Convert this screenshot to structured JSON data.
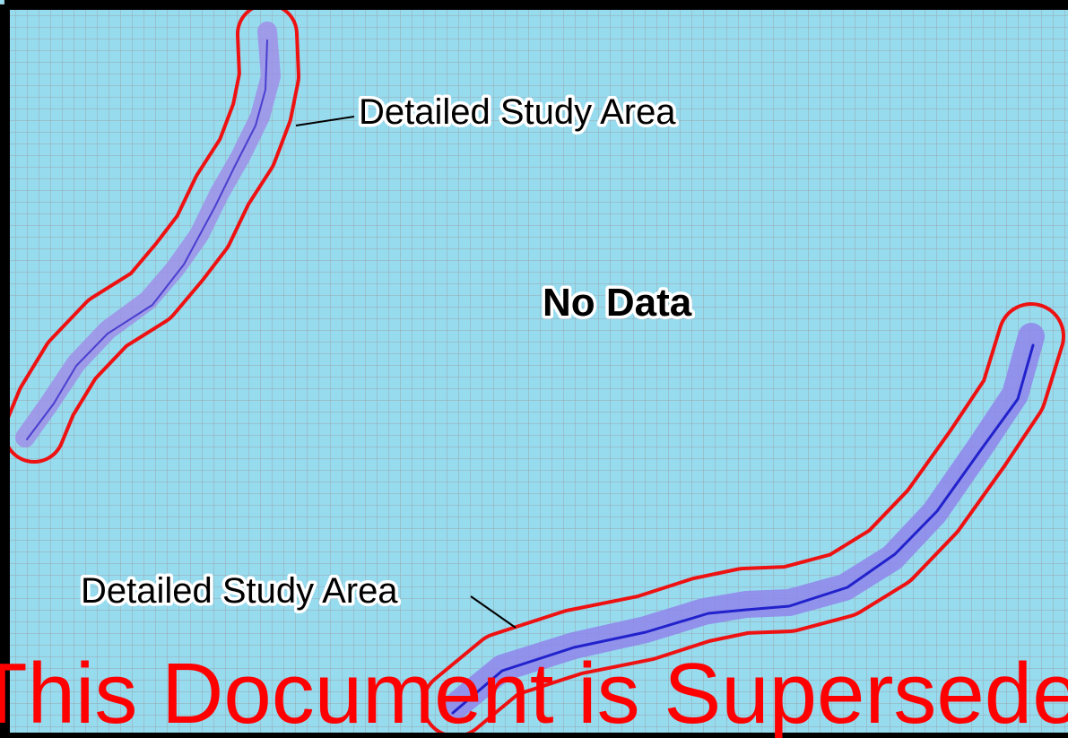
{
  "labels": {
    "upper_area": "Detailed Study Area",
    "lower_area": "Detailed Study Area",
    "center": "No Data"
  },
  "watermark": "This Document is Superseded"
}
